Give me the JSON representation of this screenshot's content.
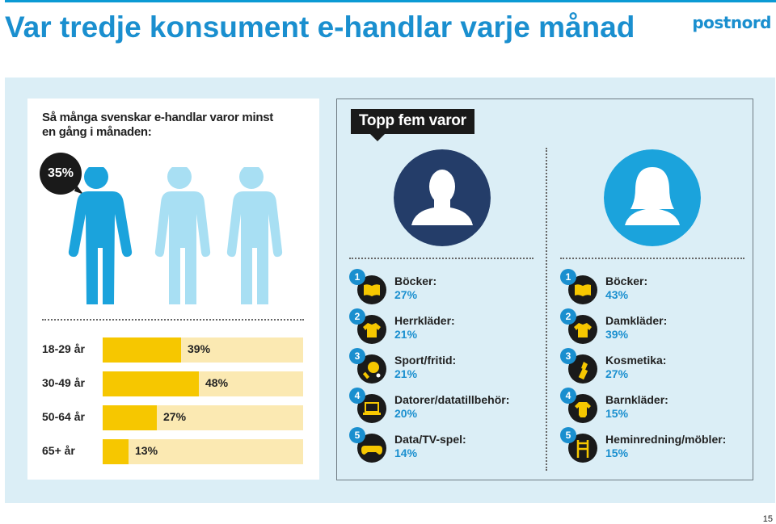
{
  "slide": {
    "title": "Var tredje konsument e-handlar varje månad",
    "logo": "postnord",
    "page_number": "15"
  },
  "left": {
    "heading": "Så många svenskar e-handlar varor minst en gång i månaden:",
    "total_percent": "35%",
    "age_groups": [
      {
        "label": "18-29 år",
        "value_text": "39%",
        "value": 39
      },
      {
        "label": "30-49 år",
        "value_text": "48%",
        "value": 48
      },
      {
        "label": "50-64 år",
        "value_text": "27%",
        "value": 27
      },
      {
        "label": "65+ år",
        "value_text": "13%",
        "value": 13
      }
    ]
  },
  "right": {
    "heading": "Topp fem varor",
    "men": [
      {
        "num": "1",
        "icon": "book-icon",
        "name": "Böcker:",
        "pct": "27%"
      },
      {
        "num": "2",
        "icon": "sweater-icon",
        "name": "Herrkläder:",
        "pct": "21%"
      },
      {
        "num": "3",
        "icon": "ping-pong-icon",
        "name": "Sport/fritid:",
        "pct": "21%"
      },
      {
        "num": "4",
        "icon": "laptop-icon",
        "name": "Datorer/datatillbehör:",
        "pct": "20%"
      },
      {
        "num": "5",
        "icon": "gamepad-icon",
        "name": "Data/TV-spel:",
        "pct": "14%"
      }
    ],
    "women": [
      {
        "num": "1",
        "icon": "book-icon",
        "name": "Böcker:",
        "pct": "43%"
      },
      {
        "num": "2",
        "icon": "sweater-icon",
        "name": "Damkläder:",
        "pct": "39%"
      },
      {
        "num": "3",
        "icon": "lipstick-icon",
        "name": "Kosmetika:",
        "pct": "27%"
      },
      {
        "num": "4",
        "icon": "baby-bodysuit-icon",
        "name": "Barnkläder:",
        "pct": "15%"
      },
      {
        "num": "5",
        "icon": "chair-icon",
        "name": "Heminredning/möbler:",
        "pct": "15%"
      }
    ]
  },
  "colors": {
    "brand_blue": "#1a8fcf",
    "bar_yellow": "#f6c700",
    "bar_track": "#fbe9b2",
    "navy": "#243d69"
  }
}
